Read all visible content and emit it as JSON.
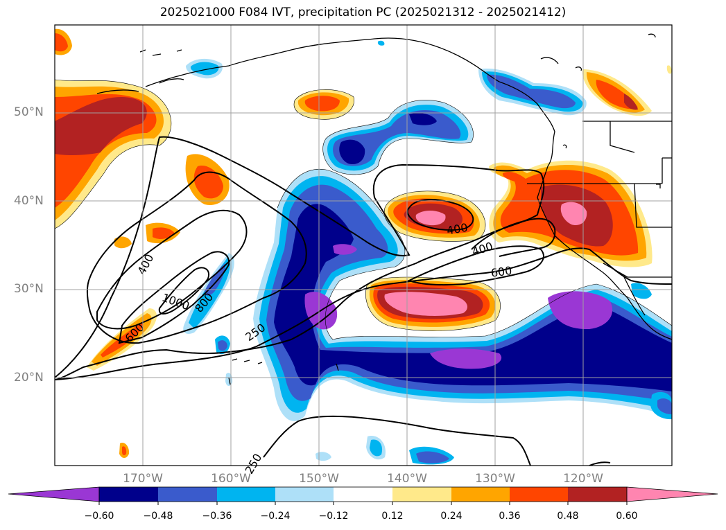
{
  "title": "2025021000 F084 IVT, precipitation PC (2025021312 - 2025021412)",
  "map": {
    "lat_labels": [
      "50°N",
      "40°N",
      "30°N",
      "20°N"
    ],
    "lon_labels": [
      "170°W",
      "160°W",
      "150°W",
      "140°W",
      "130°W",
      "120°W"
    ],
    "contour_labels": [
      "400",
      "400",
      "400",
      "600",
      "600",
      "800",
      "1000",
      "250",
      "250"
    ]
  },
  "colorbar": {
    "ticks": [
      "−0.60",
      "−0.48",
      "−0.36",
      "−0.24",
      "−0.12",
      "0.12",
      "0.24",
      "0.36",
      "0.48",
      "0.60"
    ],
    "colors": [
      "#9a37d4",
      "#00008b",
      "#3a5bcc",
      "#00b4f0",
      "#aee0f8",
      "#ffffff",
      "#ffe98a",
      "#ffa500",
      "#ff4500",
      "#b22222",
      "#ff85b0"
    ]
  }
}
